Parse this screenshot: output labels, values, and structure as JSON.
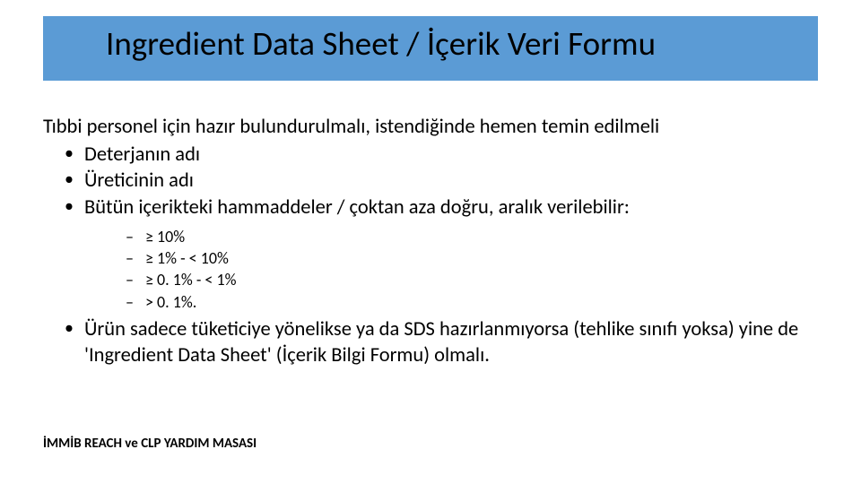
{
  "colors": {
    "title_bar_bg": "#5b9bd5",
    "background": "#ffffff",
    "text": "#000000"
  },
  "typography": {
    "title_fontsize": 37,
    "body_fontsize": 22.5,
    "sub_fontsize": 18,
    "footer_fontsize": 15,
    "font_family": "Calibri"
  },
  "title": "Ingredient Data Sheet / İçerik Veri Formu",
  "intro": "Tıbbi personel için hazır bulundurulmalı, istendiğinde hemen temin edilmeli",
  "bullets": {
    "b1": "Deterjanın adı",
    "b2": "Üreticinin adı",
    "b3": "Bütün içerikteki hammaddeler / çoktan aza doğru, aralık verilebilir:",
    "b4": "Ürün sadece tüketiciye yönelikse ya da SDS hazırlanmıyorsa (tehlike sınıfı yoksa) yine de 'Ingredient Data Sheet' (İçerik Bilgi Formu) olmalı."
  },
  "ranges": {
    "r1": "≥ 10%",
    "r2": "≥ 1% - < 10%",
    "r3": "≥ 0. 1% - < 1%",
    "r4": "> 0. 1%."
  },
  "footer": "İMMİB REACH ve CLP YARDIM MASASI"
}
